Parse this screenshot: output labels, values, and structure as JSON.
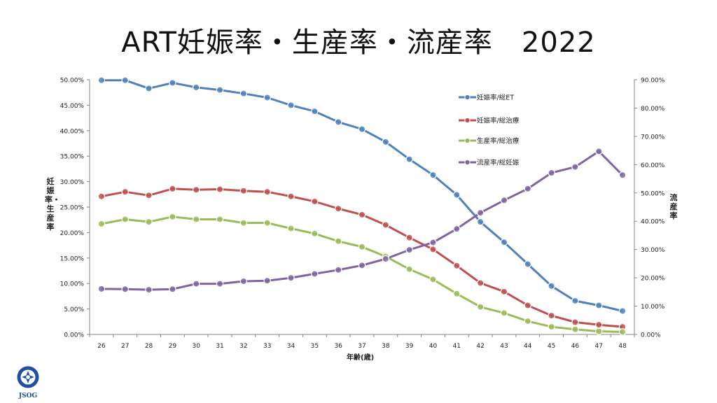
{
  "title": "ART妊娠率・生産率・流産率　2022",
  "logo_text": "JSOG",
  "colors": {
    "blue": "#4f81bd",
    "red": "#c0504d",
    "green": "#9bbb59",
    "purple": "#8064a2"
  },
  "chart_data": {
    "type": "line",
    "xlabel": "年齢(歳)",
    "ylabel_left": "妊娠率・生産率",
    "ylabel_right": "流産率",
    "x": [
      26,
      27,
      28,
      29,
      30,
      31,
      32,
      33,
      34,
      35,
      36,
      37,
      38,
      39,
      40,
      41,
      42,
      43,
      44,
      45,
      46,
      47,
      48
    ],
    "y_left_ticks": [
      "0.00%",
      "5.00%",
      "10.00%",
      "15.00%",
      "20.00%",
      "25.00%",
      "30.00%",
      "35.00%",
      "40.00%",
      "45.00%",
      "50.00%"
    ],
    "y_right_ticks": [
      "0.00%",
      "10.00%",
      "20.00%",
      "30.00%",
      "40.00%",
      "50.00%",
      "60.00%",
      "70.00%",
      "80.00%",
      "90.00%"
    ],
    "ylim_left": [
      0,
      50
    ],
    "ylim_right": [
      0,
      90
    ],
    "legend_position": "top-right",
    "grid": false,
    "series": [
      {
        "name": "妊娠率/総ET",
        "axis": "left",
        "color": "#4f81bd",
        "values": [
          49.9,
          49.9,
          48.3,
          49.4,
          48.5,
          48.0,
          47.3,
          46.5,
          45.0,
          43.8,
          41.7,
          40.3,
          37.8,
          34.4,
          31.3,
          27.4,
          22.1,
          18.1,
          13.8,
          9.5,
          6.6,
          5.7,
          4.6
        ]
      },
      {
        "name": "妊娠率/総治療",
        "axis": "left",
        "color": "#c0504d",
        "values": [
          27.1,
          28.0,
          27.3,
          28.6,
          28.4,
          28.5,
          28.2,
          28.0,
          27.1,
          26.1,
          24.7,
          23.5,
          21.5,
          19.0,
          16.7,
          13.5,
          10.1,
          8.4,
          5.7,
          3.7,
          2.4,
          1.9,
          1.5
        ]
      },
      {
        "name": "生産率/総治療",
        "axis": "left",
        "color": "#9bbb59",
        "values": [
          21.7,
          22.6,
          22.1,
          23.1,
          22.6,
          22.6,
          21.9,
          21.9,
          20.8,
          19.8,
          18.3,
          17.2,
          15.3,
          12.8,
          10.8,
          8.0,
          5.4,
          4.2,
          2.6,
          1.5,
          1.0,
          0.6,
          0.5
        ]
      },
      {
        "name": "流産率/総妊娠",
        "axis": "right",
        "color": "#8064a2",
        "values": [
          16.1,
          16.0,
          15.8,
          16.0,
          17.9,
          17.9,
          18.8,
          19.0,
          20.0,
          21.4,
          22.8,
          24.4,
          26.7,
          29.9,
          32.5,
          37.3,
          43.0,
          47.4,
          51.5,
          57.1,
          59.2,
          64.7,
          56.3
        ]
      }
    ]
  }
}
